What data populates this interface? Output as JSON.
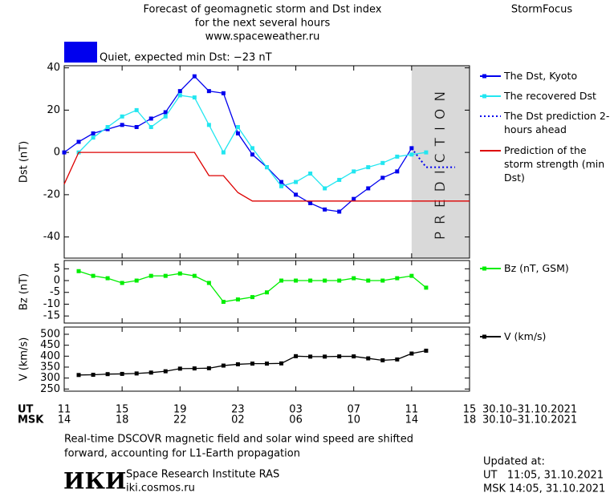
{
  "header": {
    "title": [
      "Forecast of geomagnetic storm and Dst index",
      "for the next several hours"
    ],
    "url": "www.spaceweather.ru",
    "brand": "StormFocus",
    "status": "Quiet, expected min Dst: −23 nT",
    "status_color": "#0000ee"
  },
  "chart_data": [
    {
      "type": "line",
      "y_label": "Dst (nT)",
      "xlim": [
        0,
        28
      ],
      "ylim": [
        -50,
        41
      ],
      "yticks": [
        40,
        20,
        0,
        -20,
        -40
      ],
      "prediction_zone": [
        24,
        28
      ],
      "prediction_label": "PREDICTION",
      "series": [
        {
          "name": "The Dst, Kyoto",
          "color": "#0000ee",
          "marker": true,
          "style": "solid",
          "x": [
            0,
            1,
            2,
            3,
            4,
            5,
            6,
            7,
            8,
            9,
            10,
            11,
            12,
            13,
            14,
            15,
            16,
            17,
            18,
            19,
            20,
            21,
            22,
            23,
            24
          ],
          "values": [
            0,
            5,
            9,
            11,
            13,
            12,
            16,
            19,
            29,
            36,
            29,
            28,
            9,
            -1,
            -7,
            -14,
            -20,
            -24,
            -27,
            -28,
            -22,
            -17,
            -12,
            -9,
            2
          ]
        },
        {
          "name": "The recovered Dst",
          "color": "#22e6f0",
          "marker": true,
          "style": "solid",
          "x": [
            1,
            2,
            3,
            4,
            5,
            6,
            7,
            8,
            9,
            10,
            11,
            12,
            13,
            14,
            15,
            16,
            17,
            18,
            19,
            20,
            21,
            22,
            23,
            24,
            25
          ],
          "values": [
            0,
            7,
            12,
            17,
            20,
            12,
            17,
            27,
            26,
            13,
            0,
            12,
            2,
            -7,
            -16,
            -14,
            -10,
            -17,
            -13,
            -9,
            -7,
            -5,
            -2,
            -1,
            0
          ]
        },
        {
          "name": "The Dst prediction 2-4 hours ahead",
          "color": "#0000ee",
          "marker": false,
          "style": "dotted",
          "x": [
            24,
            25,
            27
          ],
          "values": [
            2,
            -7,
            -7
          ]
        },
        {
          "name": "Prediction of the storm strength (min Dst)",
          "color": "#dd0000",
          "marker": false,
          "style": "solid",
          "x": [
            0,
            1,
            9,
            10,
            11,
            12,
            13,
            28
          ],
          "values": [
            -15,
            0,
            0,
            -11,
            -11,
            -19,
            -23,
            -23
          ]
        }
      ]
    },
    {
      "type": "line",
      "y_label": "Bz (nT)",
      "xlim": [
        0,
        28
      ],
      "ylim": [
        -18,
        8.5
      ],
      "yticks": [
        5,
        0,
        -5,
        -10,
        -15
      ],
      "x": [
        1,
        2,
        3,
        4,
        5,
        6,
        7,
        8,
        9,
        10,
        11,
        12,
        13,
        14,
        15,
        16,
        17,
        18,
        19,
        20,
        21,
        22,
        23,
        24,
        25
      ],
      "series": [
        {
          "name": "Bz (nT, GSM)",
          "color": "#00ee00",
          "marker": true,
          "style": "solid",
          "values": [
            4,
            2,
            1,
            -1,
            0,
            2,
            2,
            3,
            2,
            -1,
            -9,
            -8,
            -7,
            -5,
            0,
            0,
            0,
            0,
            0,
            1,
            0,
            0,
            1,
            2,
            -3
          ]
        }
      ]
    },
    {
      "type": "line",
      "y_label": "V (km/s)",
      "xlim": [
        0,
        28
      ],
      "ylim": [
        240,
        533
      ],
      "yticks": [
        500,
        450,
        400,
        350,
        300,
        250
      ],
      "x": [
        1,
        2,
        3,
        4,
        5,
        6,
        7,
        8,
        9,
        10,
        11,
        12,
        13,
        14,
        15,
        16,
        17,
        18,
        19,
        20,
        21,
        22,
        23,
        24,
        25
      ],
      "xtick_rows": [
        "UT",
        "MSK"
      ],
      "xticks": [
        {
          "value": 0,
          "label": "11"
        },
        {
          "value": 4,
          "label": "15"
        },
        {
          "value": 8,
          "label": "19"
        },
        {
          "value": 12,
          "label": "23"
        },
        {
          "value": 16,
          "label": "03"
        },
        {
          "value": 20,
          "label": "07"
        },
        {
          "value": 24,
          "label": "11"
        },
        {
          "value": 28,
          "label": "15"
        }
      ],
      "x2ticks": [
        {
          "value": 0,
          "label": "14"
        },
        {
          "value": 4,
          "label": "18"
        },
        {
          "value": 8,
          "label": "22"
        },
        {
          "value": 12,
          "label": "02"
        },
        {
          "value": 16,
          "label": "06"
        },
        {
          "value": 20,
          "label": "10"
        },
        {
          "value": 24,
          "label": "14"
        },
        {
          "value": 28,
          "label": "18"
        }
      ],
      "date_range": "30.10–31.10.2021",
      "series": [
        {
          "name": "V (km/s)",
          "color": "#000000",
          "marker": true,
          "style": "solid",
          "values": [
            314,
            315,
            318,
            319,
            321,
            325,
            331,
            343,
            344,
            345,
            357,
            363,
            366,
            366,
            367,
            400,
            398,
            398,
            399,
            399,
            390,
            381,
            385,
            412,
            425
          ]
        }
      ]
    }
  ],
  "footer": {
    "note": [
      "Real-time DSCOVR magnetic field and solar wind speed are shifted",
      "forward, accounting for L1-Earth propagation"
    ],
    "logo": "ИКИ",
    "institute": "Space Research Institute RAS",
    "site": "iki.cosmos.ru",
    "updated": [
      "Updated at:",
      "UT   11:05, 31.10.2021",
      "MSK 14:05, 31.10.2021"
    ]
  }
}
